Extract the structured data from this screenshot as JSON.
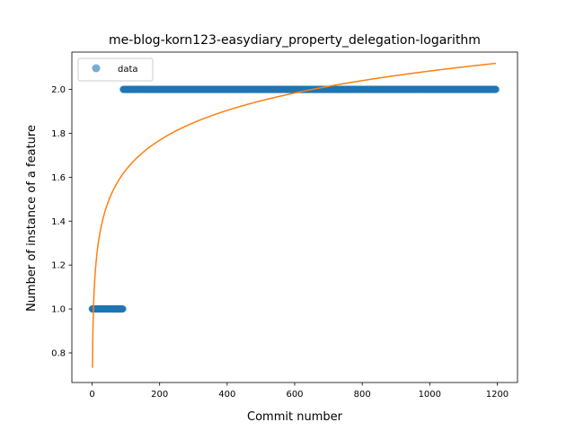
{
  "chart_data": {
    "type": "scatter",
    "title": "me-blog-korn123-easydiary_property_delegation-logarithm",
    "xlabel": "Commit number",
    "ylabel": "Number of instance of a feature",
    "xlim": [
      -60,
      1260
    ],
    "ylim": [
      0.665,
      2.17
    ],
    "x_ticks": [
      0,
      200,
      400,
      600,
      800,
      1000,
      1200
    ],
    "x_tick_labels": [
      "0",
      "200",
      "400",
      "600",
      "800",
      "1000",
      "1200"
    ],
    "y_ticks": [
      0.8,
      1.0,
      1.2,
      1.4,
      1.6,
      1.8,
      2.0
    ],
    "y_tick_labels": [
      "0.8",
      "1.0",
      "1.2",
      "1.4",
      "1.6",
      "1.8",
      "2.0"
    ],
    "grid": false,
    "legend": {
      "placement": "top-left",
      "entries": [
        "data"
      ]
    },
    "series": [
      {
        "name": "data",
        "kind": "points",
        "color": "#1f77b4",
        "segments": [
          {
            "x_start": 0,
            "x_end": 91,
            "y": 1.0
          },
          {
            "x_start": 92,
            "x_end": 1196,
            "y": 2.0
          }
        ]
      },
      {
        "kind": "fit-curve",
        "color": "#ff7f0e",
        "model": "a + b*ln(x)",
        "a": 0.7318,
        "b": 0.1957,
        "x_range": [
          1,
          1196
        ]
      }
    ]
  }
}
